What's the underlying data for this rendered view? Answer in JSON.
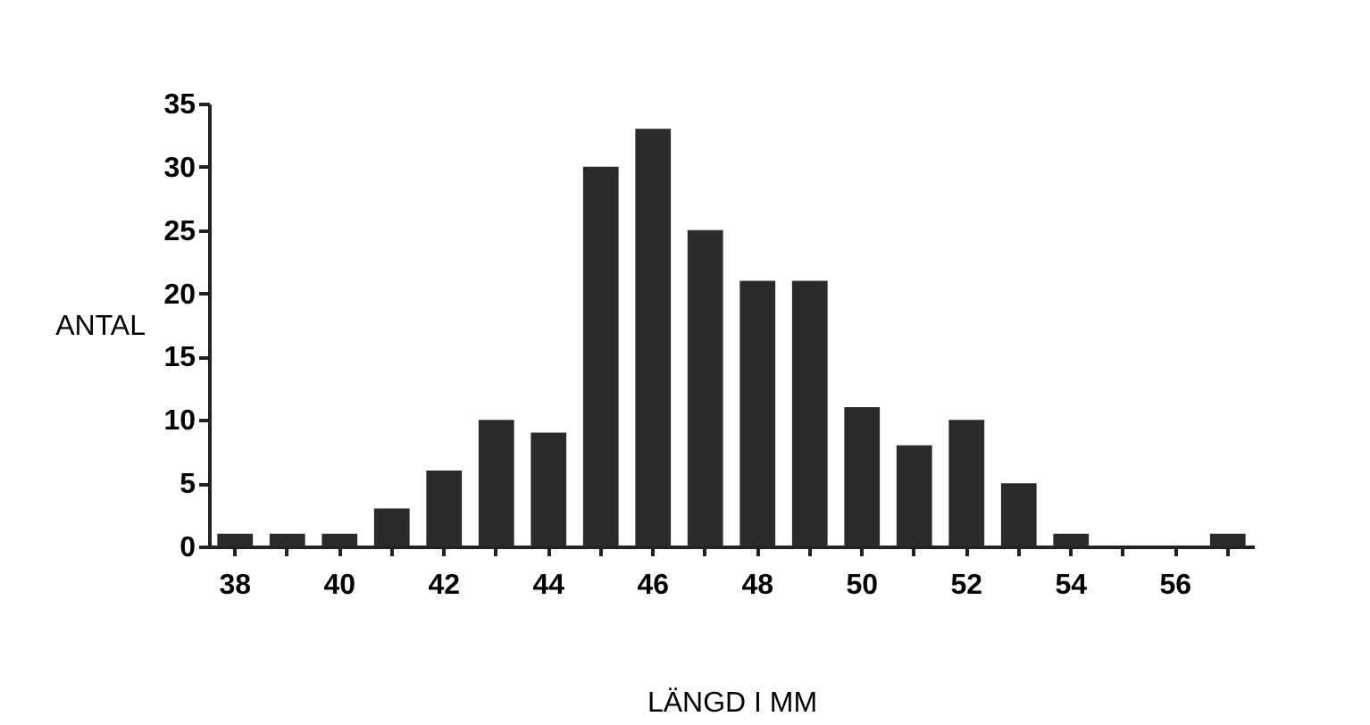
{
  "chart_data": {
    "type": "bar",
    "xlabel": "LÄNGD I MM",
    "ylabel": "ANTAL",
    "categories": [
      "38",
      null,
      "40",
      null,
      "42",
      null,
      "44",
      null,
      "46",
      null,
      "48",
      null,
      "50",
      null,
      "52",
      null,
      "54",
      null,
      "56",
      null
    ],
    "values": [
      1,
      1,
      1,
      3,
      6,
      10,
      9,
      30,
      33,
      25,
      21,
      21,
      11,
      8,
      10,
      5,
      1,
      0,
      0,
      1
    ],
    "color": "#2b2b2b",
    "ylim": [
      0,
      35
    ],
    "yticks": [
      0,
      5,
      10,
      15,
      20,
      25,
      30,
      35
    ],
    "grid": false,
    "legend": false
  }
}
